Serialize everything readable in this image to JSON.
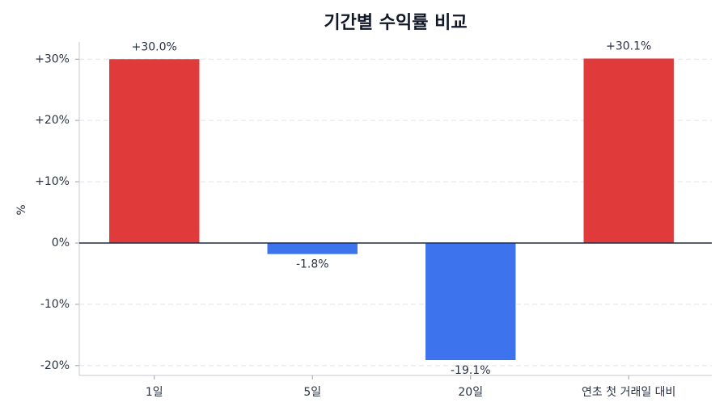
{
  "chart_data": {
    "type": "bar",
    "title": "기간별 수익률 비교",
    "y_label": "%",
    "categories": [
      "1일",
      "5일",
      "20일",
      "연초 첫 거래일 대비"
    ],
    "values": [
      30.0,
      -1.8,
      -19.1,
      30.1
    ],
    "value_labels": [
      "+30.0%",
      "-1.8%",
      "-19.1%",
      "+30.1%"
    ],
    "colors": [
      "#e03a3a",
      "#3d74ee",
      "#3d74ee",
      "#e03a3a"
    ],
    "ylim": [
      -21.6,
      32.8
    ],
    "yticks": [
      {
        "value": -20,
        "label": "-20%"
      },
      {
        "value": -10,
        "label": "-10%"
      },
      {
        "value": 0,
        "label": "0%"
      },
      {
        "value": 10,
        "label": "+10%"
      },
      {
        "value": 20,
        "label": "+20%"
      },
      {
        "value": 30,
        "label": "+30%"
      }
    ],
    "grid": true
  }
}
